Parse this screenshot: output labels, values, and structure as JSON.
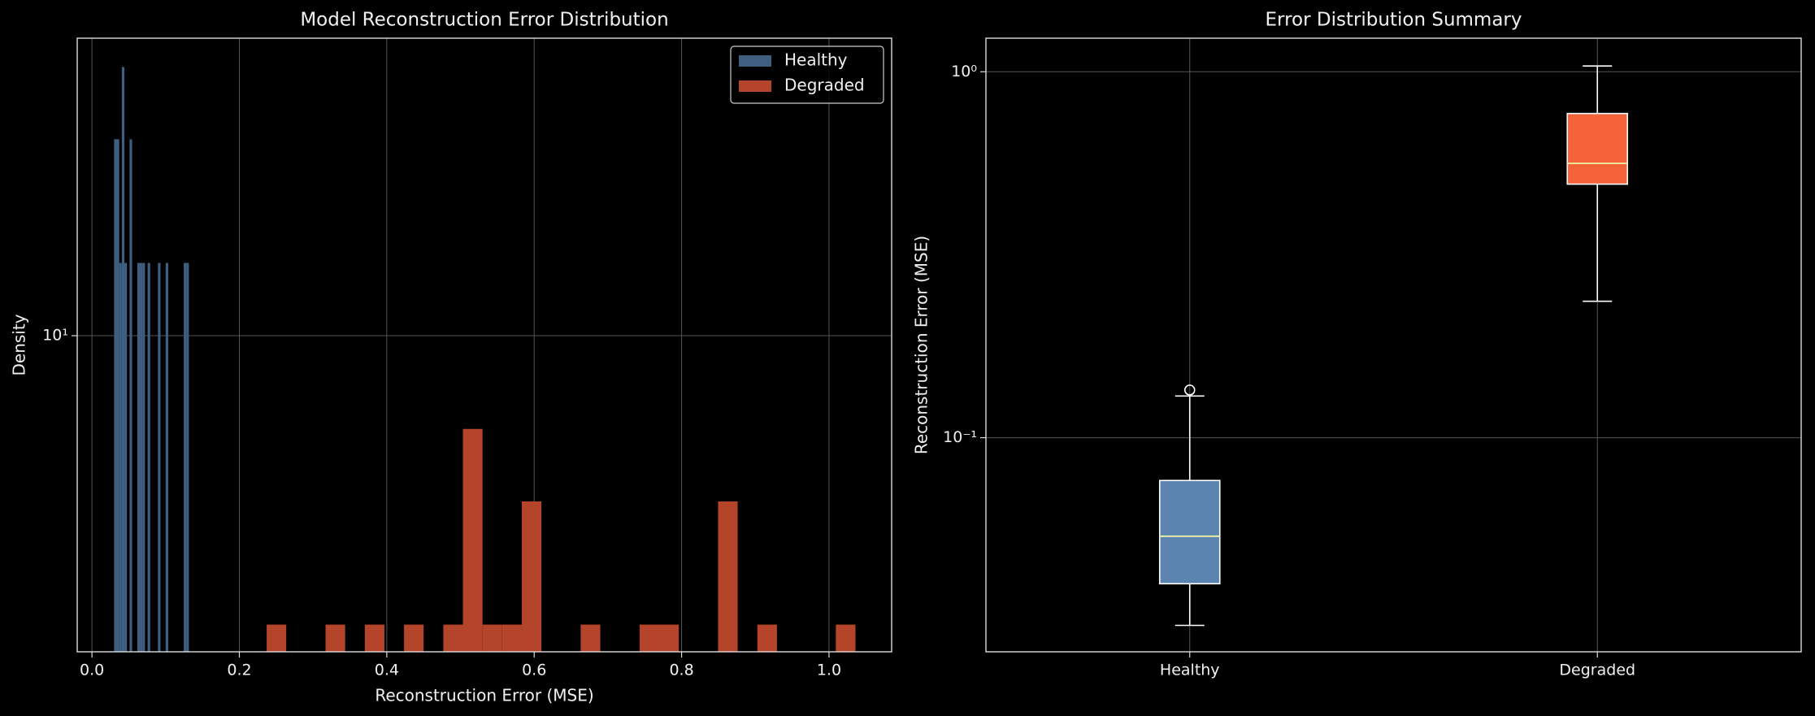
{
  "chart_data": [
    {
      "type": "histogram",
      "title": "Model Reconstruction Error Distribution",
      "xlabel": "Reconstruction Error (MSE)",
      "ylabel": "Density",
      "log_y": true,
      "grid": true,
      "legend": "upper right",
      "xlim": [
        -0.02,
        1.085
      ],
      "xticks": [
        {
          "value": 0,
          "label": "0.0"
        },
        0.2,
        0.4,
        0.6,
        0.8,
        {
          "value": 1,
          "label": "1.0"
        }
      ],
      "ylim": [
        1.7,
        53
      ],
      "yticks": [
        {
          "value": 10,
          "label": "10¹"
        }
      ],
      "series": [
        {
          "name": "Healthy",
          "color": "#3f5e80",
          "bins": [
            0.03,
            0.0335,
            0.037,
            0.0405,
            0.044,
            0.0475,
            0.051,
            0.0545,
            0.058,
            0.0615,
            0.065,
            0.0685,
            0.072,
            0.0755,
            0.079,
            0.0825,
            0.086,
            0.0895,
            0.093,
            0.0965,
            0.1,
            0.1035,
            0.107,
            0.1105,
            0.114,
            0.1175,
            0.121,
            0.1245,
            0.128,
            0.1315,
            0.135
          ],
          "values": [
            30.08,
            30.08,
            15.04,
            45.11,
            15.04,
            0,
            30.08,
            0,
            0,
            15.04,
            15.04,
            15.04,
            0,
            15.04,
            0,
            0,
            0,
            15.04,
            0,
            0,
            15.04,
            0,
            0,
            0,
            0,
            0,
            0,
            15.04,
            15.04,
            0
          ]
        },
        {
          "name": "Degraded",
          "color": "#b4442a",
          "bins": [
            0.237,
            0.2636,
            0.2903,
            0.3169,
            0.3435,
            0.3702,
            0.3968,
            0.4234,
            0.45,
            0.4767,
            0.5033,
            0.5299,
            0.5566,
            0.5832,
            0.6098,
            0.6365,
            0.6631,
            0.6897,
            0.7163,
            0.743,
            0.7696,
            0.7962,
            0.8229,
            0.8495,
            0.8761,
            0.9028,
            0.9294,
            0.956,
            0.9826,
            1.0093,
            1.0359
          ],
          "values": [
            1.98,
            0,
            0,
            1.98,
            0,
            1.98,
            0,
            1.98,
            0,
            1.98,
            5.93,
            1.98,
            1.98,
            3.95,
            0,
            0,
            1.98,
            0,
            0,
            1.98,
            1.98,
            0,
            0,
            3.95,
            0,
            1.98,
            0,
            0,
            0,
            1.98
          ]
        }
      ]
    },
    {
      "type": "box",
      "title": "Error Distribution Summary",
      "ylabel": "Reconstruction Error (MSE)",
      "log_y": true,
      "grid": true,
      "ylim": [
        0.026,
        1.235
      ],
      "yticks": [
        {
          "value": 0.1,
          "label": "10⁻¹"
        },
        {
          "value": 1,
          "label": "10⁰"
        }
      ],
      "categories": [
        "Healthy",
        "Degraded"
      ],
      "median_color": "#f2f2a6",
      "boxes": [
        {
          "color": "#5b84b1",
          "whislo": 0.0307,
          "q1": 0.0399,
          "med": 0.0538,
          "q3": 0.0764,
          "whishi": 0.13,
          "fliers": [
            0.135
          ]
        },
        {
          "color": "#f4623a",
          "whislo": 0.236,
          "q1": 0.493,
          "med": 0.562,
          "q3": 0.769,
          "whishi": 1.037,
          "fliers": []
        }
      ]
    }
  ]
}
